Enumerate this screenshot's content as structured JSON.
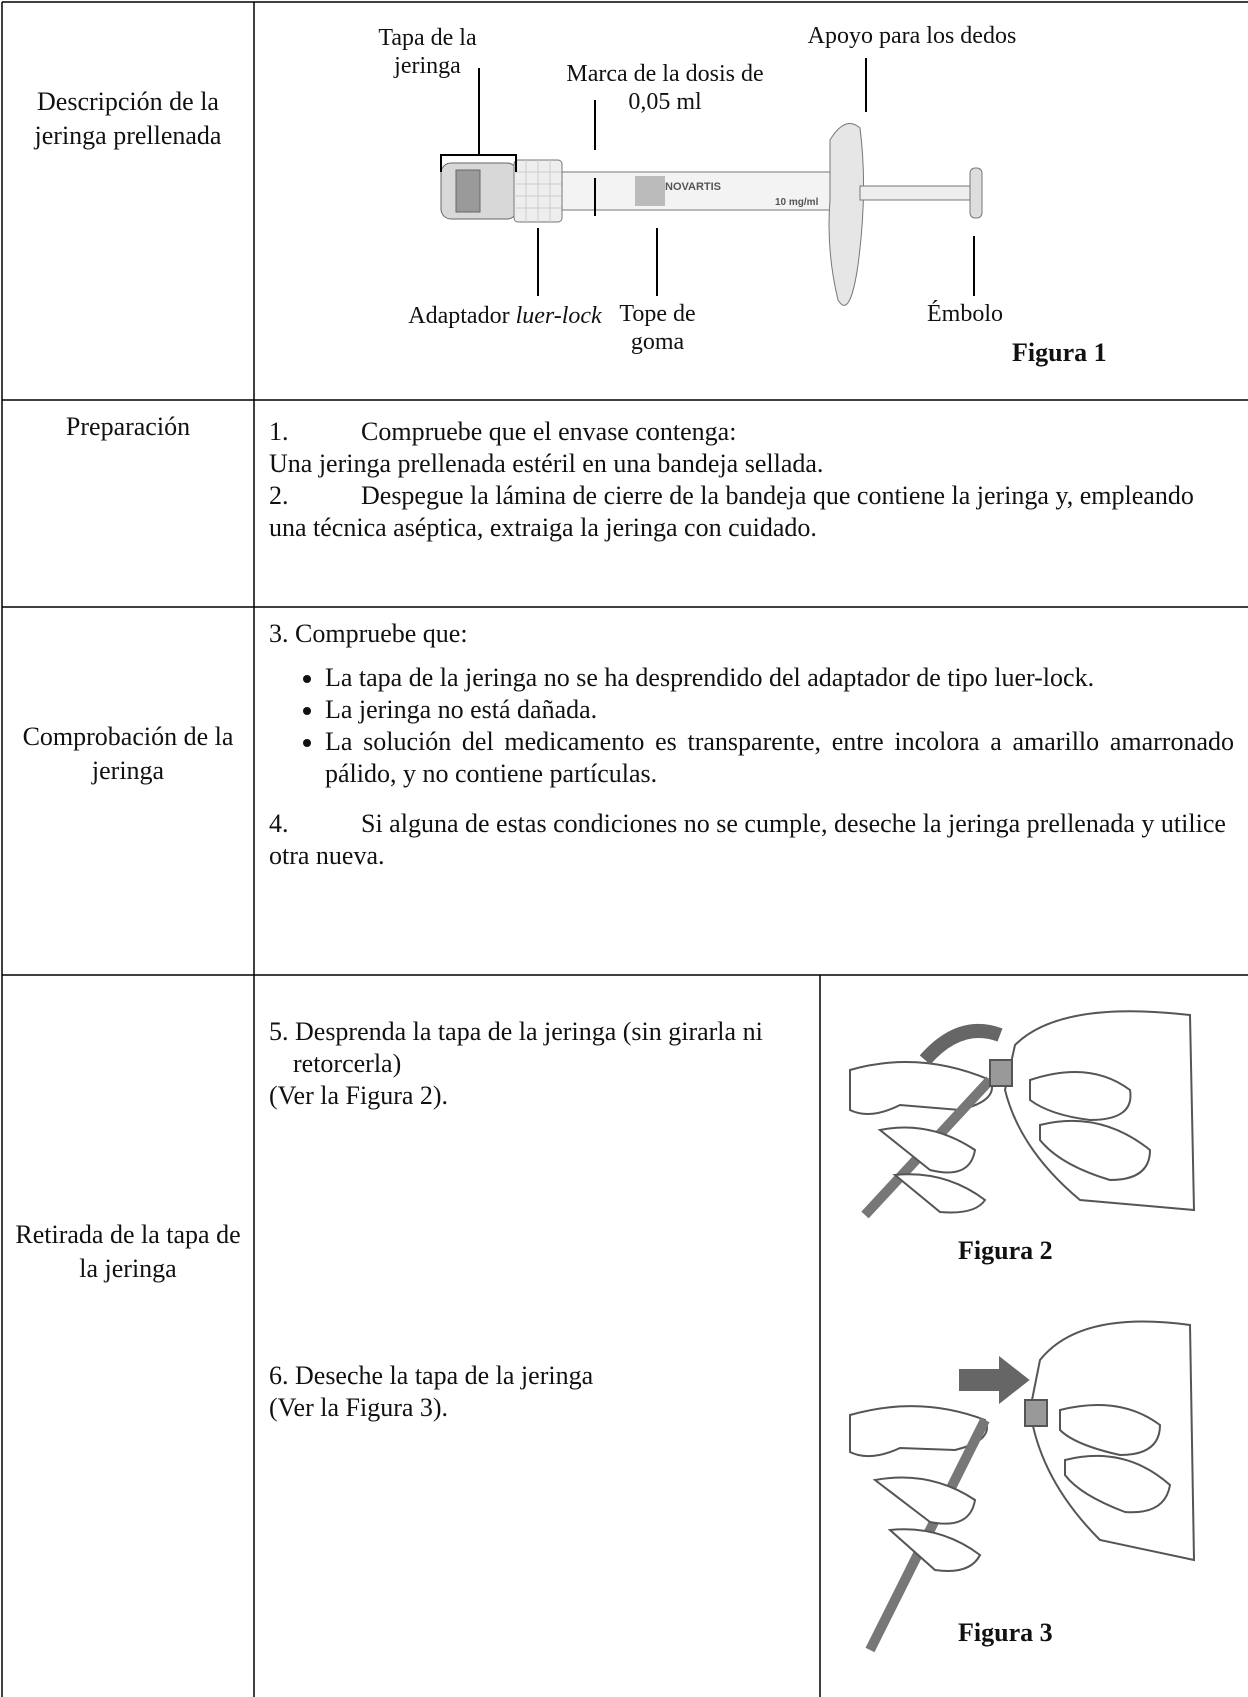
{
  "rows": [
    {
      "label": "Descripción de la jeringa prellenada",
      "figure": {
        "callouts": [
          {
            "text": "Tapa de la jeringa"
          },
          {
            "text": "Marca de la dosis de 0,05 ml"
          },
          {
            "text": "Apoyo para los dedos"
          },
          {
            "text": "Adaptador",
            "emphasis": "luer-lock"
          },
          {
            "text": "Tope de goma"
          },
          {
            "text": "Émbolo"
          }
        ],
        "product_text": [
          "NOVARTIS",
          "10 mg/ml"
        ],
        "caption": "Figura 1"
      }
    },
    {
      "label": "Preparación",
      "steps": [
        {
          "number": "1.",
          "text": "Compruebe que el envase contenga:"
        },
        {
          "text": "Una jeringa prellenada estéril en una bandeja sellada."
        },
        {
          "number": "2.",
          "text": "Despegue la lámina de cierre de la bandeja que contiene la jeringa y, empleando una técnica aséptica, extraiga la jeringa con cuidado."
        }
      ]
    },
    {
      "label": "Comprobación de la jeringa",
      "intro": {
        "number": "3.",
        "text": "Compruebe que:"
      },
      "bullets": [
        "La tapa de la jeringa no se ha desprendido del adaptador de tipo luer-lock.",
        "La jeringa no está dañada.",
        "La solución del medicamento es transparente, entre incolora a amarillo amarronado pálido, y no contiene partículas."
      ],
      "step": {
        "number": "4.",
        "text": "Si alguna de estas condiciones no se cumple, deseche la jeringa prellenada y utilice otra nueva."
      }
    },
    {
      "label": "Retirada de la tapa de la jeringa",
      "steps": [
        {
          "number": "5.",
          "text": "Desprenda la tapa de la jeringa (sin girarla ni retorcerla)",
          "ref": "(Ver la Figura 2)."
        },
        {
          "number": "6.",
          "text": "Deseche la tapa de la jeringa",
          "ref": "(Ver la Figura 3)."
        }
      ],
      "figures": [
        "Figura 2",
        "Figura 3"
      ]
    }
  ]
}
